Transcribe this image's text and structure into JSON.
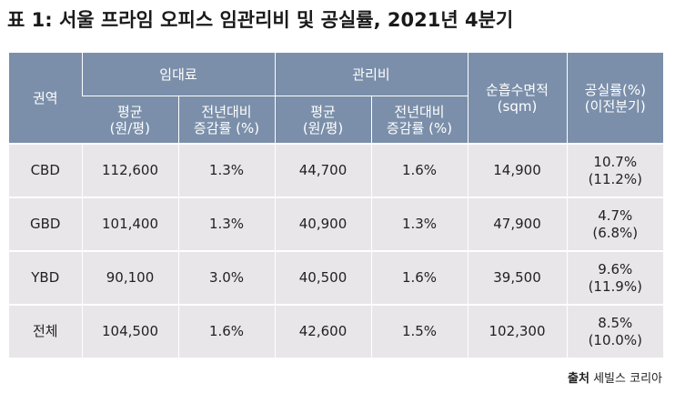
{
  "title": "표 1: 서울 프라임 오피스 임관리비 및 공실률, 2021년 4분기",
  "headers": {
    "region": "권역",
    "rent_group": "임대료",
    "mgmt_group": "관리비",
    "rent_avg": [
      "평균",
      "(원/평)"
    ],
    "rent_yoy": [
      "전년대비",
      "증감률 (%)"
    ],
    "mgmt_avg": [
      "평균",
      "(원/평)"
    ],
    "mgmt_yoy": [
      "전년대비",
      "증감률 (%)"
    ],
    "area": [
      "순흡수면적",
      "(sqm)"
    ],
    "vacancy": [
      "공실률(%)",
      "(이전분기)"
    ]
  },
  "rows": [
    {
      "region": "CBD",
      "rent_avg": "112,600",
      "rent_yoy": "1.3%",
      "mgmt_avg": "44,700",
      "mgmt_yoy": "1.6%",
      "area": "14,900",
      "vacancy": "10.7%",
      "vacancy_prev": "(11.2%)"
    },
    {
      "region": "GBD",
      "rent_avg": "101,400",
      "rent_yoy": "1.3%",
      "mgmt_avg": "40,900",
      "mgmt_yoy": "1.3%",
      "area": "47,900",
      "vacancy": "4.7%",
      "vacancy_prev": "(6.8%)"
    },
    {
      "region": "YBD",
      "rent_avg": "90,100",
      "rent_yoy": "3.0%",
      "mgmt_avg": "40,500",
      "mgmt_yoy": "1.6%",
      "area": "39,500",
      "vacancy": "9.6%",
      "vacancy_prev": "(11.9%)"
    },
    {
      "region": "전체",
      "rent_avg": "104,500",
      "rent_yoy": "1.6%",
      "mgmt_avg": "42,600",
      "mgmt_yoy": "1.5%",
      "area": "102,300",
      "vacancy": "8.5%",
      "vacancy_prev": "(10.0%)"
    }
  ],
  "source": {
    "label": "출처",
    "text": "세빌스 코리아"
  }
}
